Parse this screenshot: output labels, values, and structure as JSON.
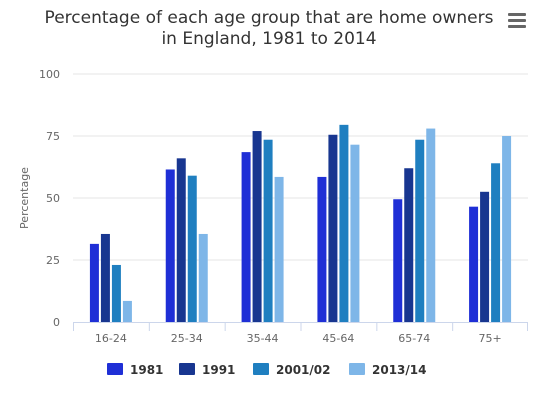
{
  "chart": {
    "title_line1": "Percentage of each age group that are home owners",
    "title_line2": "in England, 1981 to 2014",
    "menu_icon": "hamburger-menu-icon"
  },
  "chart_data": {
    "type": "bar",
    "title": "Percentage of each age group that are home owners in England, 1981 to 2014",
    "xlabel": "",
    "ylabel": "Percentage",
    "categories": [
      "16-24",
      "25-34",
      "35-44",
      "45-64",
      "65-74",
      "75+"
    ],
    "ylim": [
      0,
      100
    ],
    "yticks": [
      0,
      25,
      50,
      75,
      100
    ],
    "grid": true,
    "legend_position": "bottom",
    "series": [
      {
        "name": "1981",
        "color": "#1f2fd6",
        "values": [
          31.5,
          61.5,
          68.5,
          58.5,
          49.5,
          46.5
        ]
      },
      {
        "name": "1991",
        "color": "#183690",
        "values": [
          35.5,
          66,
          77,
          75.5,
          62,
          52.5
        ]
      },
      {
        "name": "2001/02",
        "color": "#1f7fc0",
        "values": [
          23,
          59,
          73.5,
          79.5,
          73.5,
          64
        ]
      },
      {
        "name": "2013/14",
        "color": "#7eb6e8",
        "values": [
          8.5,
          35.5,
          58.5,
          71.5,
          78,
          75
        ]
      }
    ]
  }
}
